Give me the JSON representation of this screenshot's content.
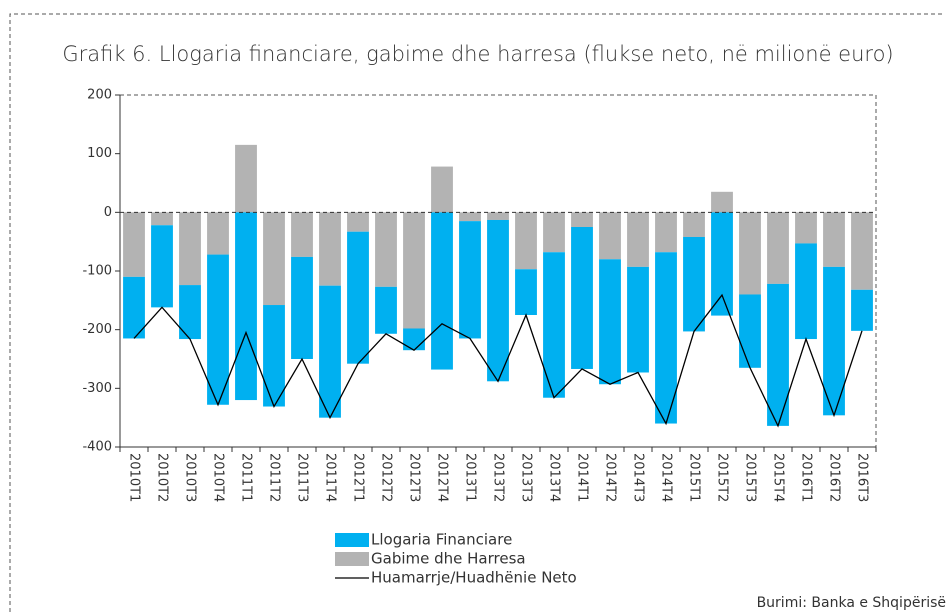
{
  "chart_data": {
    "type": "bar",
    "stacked": true,
    "title": "Grafik 6. Llogaria financiare, gabime dhe harresa (flukse neto, në milionë euro)",
    "source": "Burimi: Banka e Shqipërisë",
    "categories": [
      "2010T1",
      "2010T2",
      "2010T3",
      "2010T4",
      "2011T1",
      "2011T2",
      "2011T3",
      "2011T4",
      "2012T1",
      "2012T2",
      "2012T3",
      "2012T4",
      "2013T1",
      "2013T2",
      "2013T3",
      "2013T4",
      "2014T1",
      "2014T2",
      "2014T3",
      "2014T4",
      "2015T1",
      "2015T2",
      "2015T3",
      "2015T4",
      "2016T1",
      "2016T2",
      "2016T3"
    ],
    "series": [
      {
        "name": "Llogaria Financiare",
        "type": "bar",
        "color": "#00b0f0",
        "values": [
          -105,
          -140,
          -92,
          -256,
          -320,
          -173,
          -174,
          -225,
          -225,
          -80,
          -37,
          -268,
          -200,
          -275,
          -78,
          -248,
          -242,
          -213,
          -180,
          -292,
          -161,
          -176,
          -125,
          -242,
          -163,
          -253,
          -70
        ]
      },
      {
        "name": "Gabime dhe Harresa",
        "type": "bar",
        "color": "#b3b3b3",
        "values": [
          -110,
          -22,
          -124,
          -72,
          115,
          -158,
          -76,
          -125,
          -33,
          -127,
          -198,
          78,
          -15,
          -13,
          -97,
          -68,
          -25,
          -80,
          -93,
          -68,
          -42,
          35,
          -140,
          -122,
          -53,
          -93,
          -132
        ]
      },
      {
        "name": "Huamarrje/Huadhënie Neto",
        "type": "line",
        "color": "#000000",
        "values": [
          -215,
          -162,
          -216,
          -328,
          -205,
          -331,
          -250,
          -350,
          -258,
          -207,
          -235,
          -190,
          -215,
          -288,
          -175,
          -316,
          -267,
          -293,
          -273,
          -360,
          -203,
          -141,
          -265,
          -364,
          -216,
          -346,
          -202
        ]
      }
    ],
    "ylim": [
      -400,
      200
    ],
    "yticks": [
      -400,
      -300,
      -200,
      -100,
      0,
      100,
      200
    ],
    "grid": false
  }
}
